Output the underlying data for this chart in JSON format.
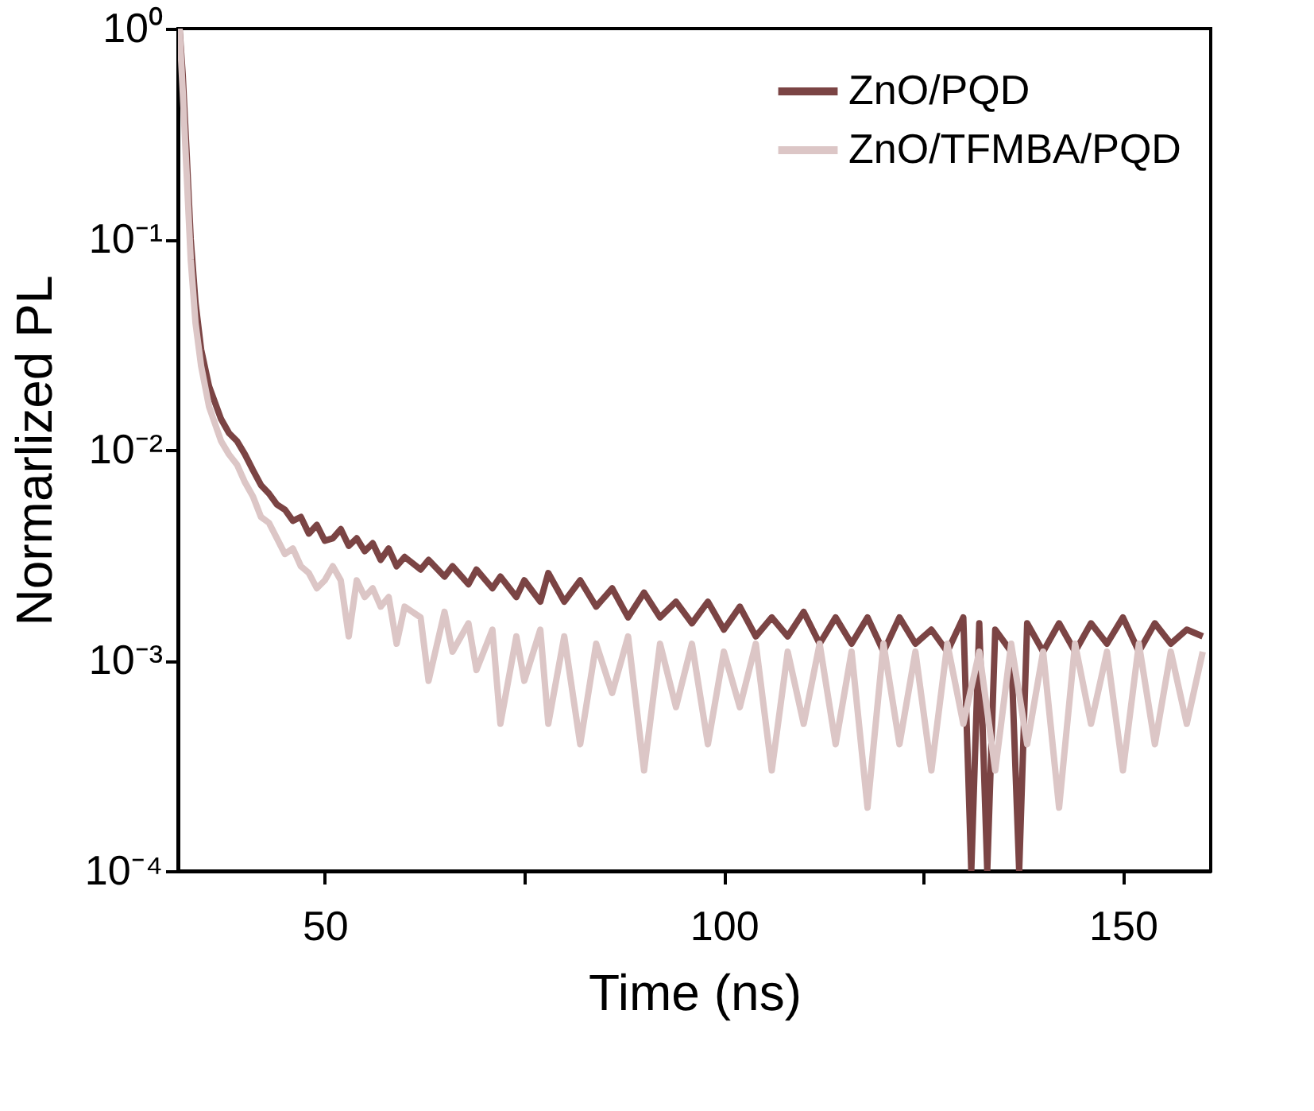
{
  "chart_data": {
    "type": "line",
    "xlabel": "Time (ns)",
    "ylabel": "Normarlized PL",
    "log": "y",
    "grid": false,
    "legend": "top right",
    "marker": "none",
    "line_style": "solid",
    "xlim": [
      31.6,
      161
    ],
    "xticks": [
      50,
      {
        "value": 75,
        "label": null
      },
      100,
      {
        "value": 125,
        "label": null
      },
      150
    ],
    "ylim": [
      0.0001,
      1
    ],
    "yticks": [
      {
        "value": 0.0001,
        "label": "10⁻⁴"
      },
      {
        "value": 0.001,
        "label": "10⁻³"
      },
      {
        "value": 0.01,
        "label": "10⁻²"
      },
      {
        "value": 0.1,
        "label": "10⁻¹"
      },
      {
        "value": 1,
        "label": "10⁰"
      }
    ],
    "series": [
      {
        "name": "ZnO/PQD",
        "color": "#7b4444",
        "x": [
          31.8,
          32.2,
          32.7,
          33.2,
          33.8,
          34.5,
          35.5,
          37,
          38,
          39,
          40,
          41,
          42,
          43,
          44,
          45,
          46,
          47,
          48,
          49,
          50,
          51,
          52,
          53,
          54,
          55,
          56,
          57,
          58,
          59,
          60,
          62,
          63,
          65,
          66,
          68,
          69,
          71,
          72,
          74,
          75,
          77,
          78,
          80,
          82,
          84,
          86,
          88,
          90,
          92,
          94,
          96,
          98,
          100,
          102,
          104,
          106,
          108,
          110,
          112,
          114,
          116,
          118,
          120,
          122,
          124,
          126,
          128,
          130,
          131,
          132,
          133,
          134,
          136,
          137,
          138,
          140,
          142,
          144,
          146,
          148,
          150,
          152,
          154,
          156,
          158,
          160
        ],
        "values": [
          1,
          0.6,
          0.25,
          0.1,
          0.05,
          0.03,
          0.02,
          0.014,
          0.012,
          0.011,
          0.0095,
          0.008,
          0.0068,
          0.0062,
          0.0055,
          0.0052,
          0.0046,
          0.0048,
          0.004,
          0.0044,
          0.0037,
          0.0038,
          0.0042,
          0.0035,
          0.0038,
          0.0033,
          0.0036,
          0.003,
          0.0034,
          0.0028,
          0.0031,
          0.0027,
          0.003,
          0.0025,
          0.0028,
          0.0023,
          0.0027,
          0.0022,
          0.0025,
          0.002,
          0.0024,
          0.0019,
          0.0026,
          0.0019,
          0.0024,
          0.0018,
          0.0022,
          0.0016,
          0.0021,
          0.0016,
          0.0019,
          0.0015,
          0.0019,
          0.0014,
          0.0018,
          0.0013,
          0.0016,
          0.0013,
          0.0017,
          0.0012,
          0.0016,
          0.0012,
          0.0016,
          0.0011,
          0.0016,
          0.0012,
          0.0014,
          0.0011,
          0.0016,
          0.0001,
          0.0015,
          0.0001,
          0.0014,
          0.0011,
          0.0001,
          0.0015,
          0.0011,
          0.0015,
          0.0011,
          0.0015,
          0.0012,
          0.0016,
          0.0011,
          0.0015,
          0.0012,
          0.0014,
          0.0013
        ]
      },
      {
        "name": "ZnO/TFMBA/PQD",
        "color": "#dcc6c6",
        "x": [
          31.8,
          32.2,
          32.7,
          33.2,
          33.8,
          34.5,
          35.5,
          37,
          38,
          39,
          40,
          41,
          42,
          43,
          44,
          45,
          46,
          47,
          48,
          49,
          50,
          51,
          52,
          53,
          54,
          55,
          56,
          57,
          58,
          59,
          60,
          62,
          63,
          65,
          66,
          68,
          69,
          71,
          72,
          74,
          75,
          77,
          78,
          80,
          82,
          84,
          86,
          88,
          90,
          92,
          94,
          96,
          98,
          100,
          102,
          104,
          106,
          108,
          110,
          112,
          114,
          116,
          118,
          120,
          122,
          124,
          126,
          128,
          130,
          132,
          134,
          136,
          138,
          140,
          142,
          144,
          146,
          148,
          150,
          152,
          154,
          156,
          158,
          160
        ],
        "values": [
          1,
          0.5,
          0.2,
          0.08,
          0.04,
          0.025,
          0.016,
          0.011,
          0.0095,
          0.0085,
          0.007,
          0.006,
          0.0048,
          0.0045,
          0.0038,
          0.0032,
          0.0034,
          0.0028,
          0.0026,
          0.0022,
          0.0024,
          0.0028,
          0.0024,
          0.0013,
          0.0024,
          0.002,
          0.0022,
          0.0018,
          0.002,
          0.0012,
          0.0018,
          0.0016,
          0.0008,
          0.0017,
          0.0011,
          0.0015,
          0.0009,
          0.0014,
          0.0005,
          0.0013,
          0.0008,
          0.0014,
          0.0005,
          0.0013,
          0.0004,
          0.0012,
          0.0007,
          0.0013,
          0.0003,
          0.0012,
          0.0006,
          0.0012,
          0.0004,
          0.0011,
          0.0006,
          0.0012,
          0.0003,
          0.0011,
          0.0005,
          0.0012,
          0.0004,
          0.0011,
          0.0002,
          0.0012,
          0.0004,
          0.0011,
          0.0003,
          0.0012,
          0.0005,
          0.0011,
          0.0003,
          0.0012,
          0.0004,
          0.0011,
          0.0002,
          0.0012,
          0.0005,
          0.0011,
          0.0003,
          0.0012,
          0.0004,
          0.0011,
          0.0005,
          0.0011
        ]
      }
    ]
  }
}
